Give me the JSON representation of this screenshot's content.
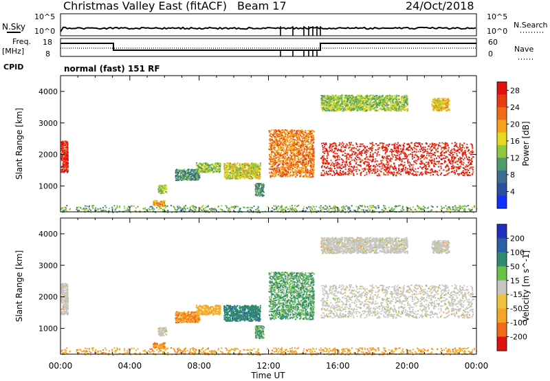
{
  "header": {
    "title": "Christmas Valley East (fitACF)",
    "beam": "Beam 17",
    "date": "24/Oct/2018"
  },
  "strip": {
    "nsky_label": "N.Sky",
    "nsearch_label": "N.Search",
    "noise_ticks": [
      "10^5",
      "10^0"
    ],
    "freq_label_1": "Freq.",
    "freq_label_2": "[MHz]",
    "freq_ticks": [
      "18",
      "8"
    ],
    "nave_label": "Nave",
    "nave_ticks": [
      "60",
      "0"
    ],
    "cpid_label": "CPID",
    "cpid_text": "normal (fast) 151 RF"
  },
  "chart_data": [
    {
      "type": "heatmap",
      "title": "",
      "xlabel": "Time UT",
      "ylabel": "Slant Range [km]",
      "x_ticks": [
        "00:00",
        "04:00",
        "08:00",
        "12:00",
        "16:00",
        "20:00",
        "00:00"
      ],
      "xlim": [
        0,
        24
      ],
      "y_ticks": [
        "1000",
        "2000",
        "3000",
        "4000"
      ],
      "ylim": [
        180,
        4500
      ],
      "colorbar": {
        "label": "Power [dB]",
        "ticks": [
          "4",
          "8",
          "12",
          "16",
          "20",
          "24",
          "28"
        ],
        "range": [
          0,
          30
        ]
      },
      "regions": [
        {
          "t0": 0.0,
          "t1": 0.4,
          "r0": 1450,
          "r1": 2450,
          "value": 26
        },
        {
          "t0": 5.3,
          "t1": 6.0,
          "r0": 380,
          "r1": 560,
          "value": 18
        },
        {
          "t0": 5.6,
          "t1": 6.1,
          "r0": 780,
          "r1": 1050,
          "value": 12
        },
        {
          "t0": 6.6,
          "t1": 8.0,
          "r0": 1200,
          "r1": 1550,
          "value": 8
        },
        {
          "t0": 7.8,
          "t1": 9.2,
          "r0": 1450,
          "r1": 1750,
          "value": 12
        },
        {
          "t0": 9.4,
          "t1": 11.5,
          "r0": 1250,
          "r1": 1750,
          "value": 14
        },
        {
          "t0": 11.2,
          "t1": 11.7,
          "r0": 700,
          "r1": 1100,
          "value": 8
        },
        {
          "t0": 12.0,
          "t1": 14.6,
          "r0": 1300,
          "r1": 2800,
          "value": 20
        },
        {
          "t0": 15.0,
          "t1": 23.8,
          "r0": 1350,
          "r1": 2400,
          "value": 26
        },
        {
          "t0": 15.0,
          "t1": 20.0,
          "r0": 3400,
          "r1": 3900,
          "value": 12
        },
        {
          "t0": 21.4,
          "t1": 22.4,
          "r0": 3400,
          "r1": 3800,
          "value": 16
        },
        {
          "t0": 0.0,
          "t1": 24.0,
          "r0": 180,
          "r1": 400,
          "value": 10
        }
      ]
    },
    {
      "type": "heatmap",
      "title": "",
      "xlabel": "Time UT",
      "ylabel": "Slant Range [km]",
      "x_ticks": [
        "00:00",
        "04:00",
        "08:00",
        "12:00",
        "16:00",
        "20:00",
        "00:00"
      ],
      "xlim": [
        0,
        24
      ],
      "y_ticks": [
        "1000",
        "2000",
        "3000",
        "4000"
      ],
      "ylim": [
        180,
        4500
      ],
      "colorbar": {
        "label": "Velocity [m s^-1]",
        "ticks": [
          "200",
          "100",
          "50",
          "15",
          "-15",
          "-50",
          "-100",
          "-200"
        ]
      },
      "regions": [
        {
          "t0": 0.0,
          "t1": 0.4,
          "r0": 1450,
          "r1": 2450,
          "value": 0
        },
        {
          "t0": 5.3,
          "t1": 6.0,
          "r0": 380,
          "r1": 560,
          "value": -70
        },
        {
          "t0": 5.6,
          "t1": 6.1,
          "r0": 780,
          "r1": 1050,
          "value": 0
        },
        {
          "t0": 6.6,
          "t1": 8.0,
          "r0": 1200,
          "r1": 1550,
          "value": -70
        },
        {
          "t0": 7.8,
          "t1": 9.2,
          "r0": 1450,
          "r1": 1750,
          "value": -40
        },
        {
          "t0": 9.4,
          "t1": 11.5,
          "r0": 1250,
          "r1": 1750,
          "value": 60
        },
        {
          "t0": 11.2,
          "t1": 11.7,
          "r0": 700,
          "r1": 1100,
          "value": 30
        },
        {
          "t0": 12.0,
          "t1": 14.6,
          "r0": 1300,
          "r1": 2800,
          "value": 30
        },
        {
          "t0": 15.0,
          "t1": 23.8,
          "r0": 1350,
          "r1": 2400,
          "value": 0
        },
        {
          "t0": 15.0,
          "t1": 20.0,
          "r0": 3400,
          "r1": 3900,
          "value": 0
        },
        {
          "t0": 21.4,
          "t1": 22.4,
          "r0": 3400,
          "r1": 3800,
          "value": 0
        },
        {
          "t0": 0.0,
          "t1": 24.0,
          "r0": 180,
          "r1": 400,
          "value": -60
        }
      ]
    }
  ]
}
